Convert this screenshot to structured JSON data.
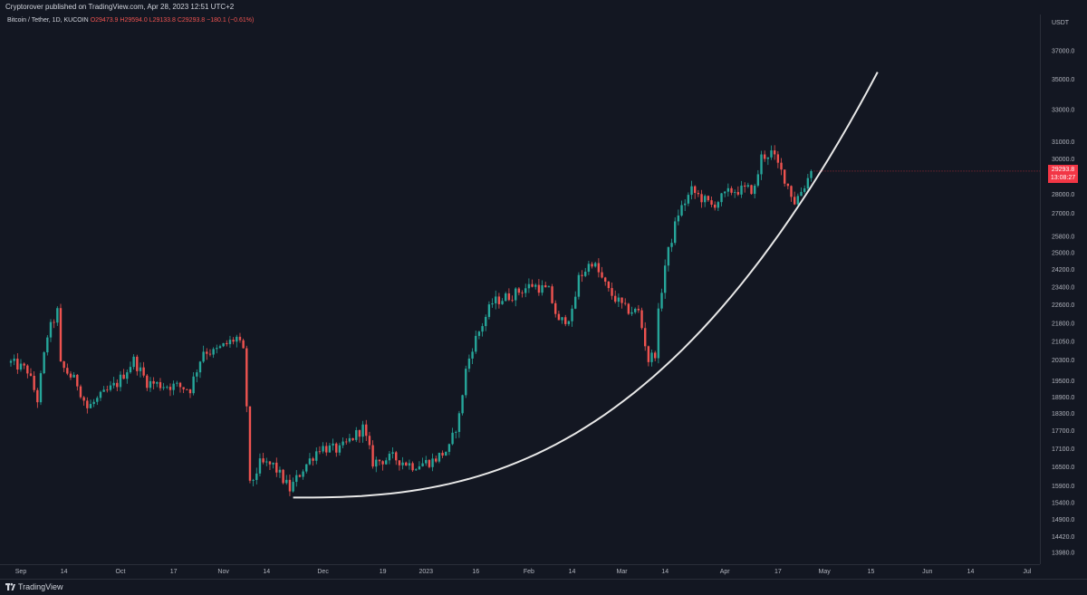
{
  "header": {
    "published": "Cryptorover published on TradingView.com, Apr 28, 2023 12:51 UTC+2"
  },
  "legend": {
    "symbol": "Bitcoin / Tether, 1D, KUCOIN",
    "ohlc": "O29473.9 H29594.0 L29133.8 C29293.8 −180.1 (−0.61%)"
  },
  "price_badge": {
    "price": "29293.8",
    "countdown": "13:08:27"
  },
  "footer": {
    "brand": "TradingView"
  },
  "colors": {
    "background": "#131722",
    "up": "#26a69a",
    "down": "#ef5350",
    "curve": "#e8e8e8",
    "price_badge": "#f23645"
  },
  "chart_data": {
    "type": "candlestick",
    "title": "",
    "currency": "USDT",
    "y_scale": "log",
    "ylim": [
      13980,
      39400
    ],
    "y_ticks": [
      "37000.0",
      "35000.0",
      "33000.0",
      "31000.0",
      "30000.0",
      "29000.0",
      "28000.0",
      "27000.0",
      "25800.0",
      "25000.0",
      "24200.0",
      "23400.0",
      "22600.0",
      "21800.0",
      "21050.0",
      "20300.0",
      "19500.0",
      "18900.0",
      "18300.0",
      "17700.0",
      "17100.0",
      "16500.0",
      "15900.0",
      "15400.0",
      "14900.0",
      "14420.0",
      "13980.0"
    ],
    "x_ticks": [
      {
        "label": "Sep",
        "date": "2022-09-01"
      },
      {
        "label": "14",
        "date": "2022-09-14"
      },
      {
        "label": "Oct",
        "date": "2022-10-01"
      },
      {
        "label": "17",
        "date": "2022-10-17"
      },
      {
        "label": "Nov",
        "date": "2022-11-01"
      },
      {
        "label": "14",
        "date": "2022-11-14"
      },
      {
        "label": "Dec",
        "date": "2022-12-01"
      },
      {
        "label": "19",
        "date": "2022-12-19"
      },
      {
        "label": "2023",
        "date": "2023-01-01"
      },
      {
        "label": "16",
        "date": "2023-01-16"
      },
      {
        "label": "Feb",
        "date": "2023-02-01"
      },
      {
        "label": "14",
        "date": "2023-02-14"
      },
      {
        "label": "Mar",
        "date": "2023-03-01"
      },
      {
        "label": "14",
        "date": "2023-03-14"
      },
      {
        "label": "Apr",
        "date": "2023-04-01"
      },
      {
        "label": "17",
        "date": "2023-04-17"
      },
      {
        "label": "May",
        "date": "2023-05-01"
      },
      {
        "label": "15",
        "date": "2023-05-15"
      },
      {
        "label": "Jun",
        "date": "2023-06-01"
      },
      {
        "label": "14",
        "date": "2023-06-14"
      },
      {
        "label": "Jul",
        "date": "2023-07-01"
      }
    ],
    "last_price": 29293.8,
    "closes": [
      {
        "date": "2022-08-29",
        "close": 20200
      },
      {
        "date": "2022-09-03",
        "close": 19900
      },
      {
        "date": "2022-09-06",
        "close": 18800
      },
      {
        "date": "2022-09-09",
        "close": 21300
      },
      {
        "date": "2022-09-12",
        "close": 22300
      },
      {
        "date": "2022-09-13",
        "close": 20100
      },
      {
        "date": "2022-09-18",
        "close": 19400
      },
      {
        "date": "2022-09-21",
        "close": 18500
      },
      {
        "date": "2022-09-25",
        "close": 18900
      },
      {
        "date": "2022-09-30",
        "close": 19400
      },
      {
        "date": "2022-10-05",
        "close": 20300
      },
      {
        "date": "2022-10-09",
        "close": 19450
      },
      {
        "date": "2022-10-13",
        "close": 19350
      },
      {
        "date": "2022-10-18",
        "close": 19300
      },
      {
        "date": "2022-10-22",
        "close": 19200
      },
      {
        "date": "2022-10-26",
        "close": 20700
      },
      {
        "date": "2022-10-29",
        "close": 20600
      },
      {
        "date": "2022-11-05",
        "close": 21200
      },
      {
        "date": "2022-11-07",
        "close": 20600
      },
      {
        "date": "2022-11-08",
        "close": 18600
      },
      {
        "date": "2022-11-09",
        "close": 15900
      },
      {
        "date": "2022-11-12",
        "close": 16600
      },
      {
        "date": "2022-11-16",
        "close": 16550
      },
      {
        "date": "2022-11-21",
        "close": 15800
      },
      {
        "date": "2022-11-25",
        "close": 16450
      },
      {
        "date": "2022-11-30",
        "close": 17150
      },
      {
        "date": "2022-12-06",
        "close": 17050
      },
      {
        "date": "2022-12-13",
        "close": 17800
      },
      {
        "date": "2022-12-16",
        "close": 16650
      },
      {
        "date": "2022-12-22",
        "close": 16800
      },
      {
        "date": "2022-12-28",
        "close": 16550
      },
      {
        "date": "2023-01-03",
        "close": 16700
      },
      {
        "date": "2023-01-08",
        "close": 17100
      },
      {
        "date": "2023-01-11",
        "close": 18200
      },
      {
        "date": "2023-01-13",
        "close": 19900
      },
      {
        "date": "2023-01-15",
        "close": 20850
      },
      {
        "date": "2023-01-21",
        "close": 22700
      },
      {
        "date": "2023-01-27",
        "close": 23050
      },
      {
        "date": "2023-02-02",
        "close": 23500
      },
      {
        "date": "2023-02-07",
        "close": 23200
      },
      {
        "date": "2023-02-10",
        "close": 21800
      },
      {
        "date": "2023-02-14",
        "close": 22200
      },
      {
        "date": "2023-02-16",
        "close": 23800
      },
      {
        "date": "2023-02-20",
        "close": 24600
      },
      {
        "date": "2023-02-25",
        "close": 23200
      },
      {
        "date": "2023-03-02",
        "close": 22400
      },
      {
        "date": "2023-03-06",
        "close": 22300
      },
      {
        "date": "2023-03-09",
        "close": 20300
      },
      {
        "date": "2023-03-11",
        "close": 20600
      },
      {
        "date": "2023-03-12",
        "close": 22200
      },
      {
        "date": "2023-03-14",
        "close": 24400
      },
      {
        "date": "2023-03-18",
        "close": 27000
      },
      {
        "date": "2023-03-22",
        "close": 28200
      },
      {
        "date": "2023-03-28",
        "close": 27400
      },
      {
        "date": "2023-04-03",
        "close": 28200
      },
      {
        "date": "2023-04-10",
        "close": 28300
      },
      {
        "date": "2023-04-12",
        "close": 30100
      },
      {
        "date": "2023-04-15",
        "close": 30350
      },
      {
        "date": "2023-04-19",
        "close": 28900
      },
      {
        "date": "2023-04-22",
        "close": 27600
      },
      {
        "date": "2023-04-25",
        "close": 28500
      },
      {
        "date": "2023-04-27",
        "close": 29300
      }
    ],
    "annotations": [
      {
        "type": "curve",
        "description": "parabolic support curve",
        "start": {
          "date": "2022-11-22",
          "price": 15550
        },
        "end": {
          "date": "2023-05-17",
          "price": 35500
        }
      }
    ]
  }
}
